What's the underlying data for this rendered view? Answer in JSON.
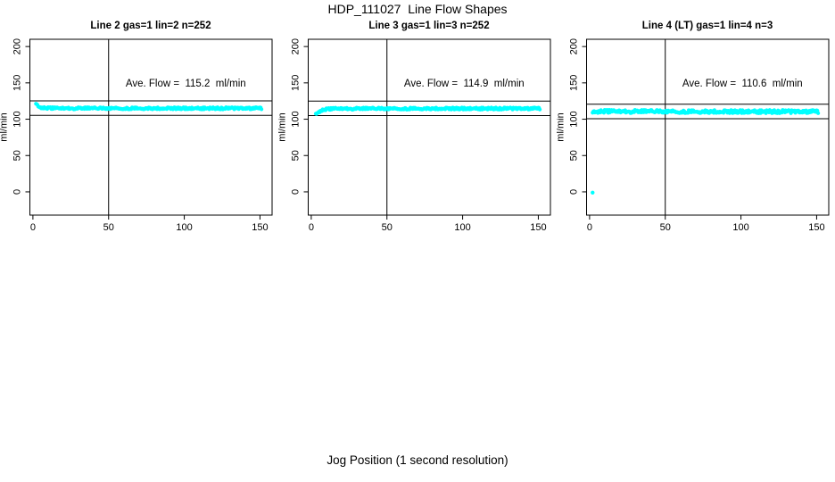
{
  "title": "HDP_111027  Line Flow Shapes",
  "bottom_axis_label": "Jog Position (1 second resolution)",
  "colors": {
    "points": "#00ffff",
    "axis": "#000000",
    "background": "#ffffff"
  },
  "chart_data": [
    {
      "type": "scatter",
      "title": "Line 2 gas=1 lin=2 n=252",
      "annotation": "Ave. Flow =  115.2  ml/min",
      "annotation_pos": [
        101,
        150
      ],
      "ave_flow": 115.2,
      "ylabel": "ml/min",
      "x_ticks": [
        0,
        50,
        100,
        150
      ],
      "y_ticks": [
        0,
        50,
        100,
        150,
        200
      ],
      "xlim": [
        -2,
        158
      ],
      "ylim": [
        -32,
        210
      ],
      "vline_x": 50,
      "hlines": [
        105.2,
        125.2
      ],
      "series": {
        "name": "flow-samples",
        "description": "dense band of 1-second flow samples, starts ~122 then settles ~115",
        "n": 252,
        "profile": [
          [
            2,
            122.5
          ],
          [
            3,
            119.5
          ],
          [
            4,
            117.3
          ],
          [
            6,
            115.8
          ],
          [
            10,
            115.2
          ],
          [
            20,
            115.0
          ],
          [
            80,
            115.0
          ],
          [
            151,
            115.0
          ]
        ],
        "noise": 1.4,
        "x_step": 0.5
      },
      "outliers": []
    },
    {
      "type": "scatter",
      "title": "Line 3 gas=1 lin=3 n=252",
      "annotation": "Ave. Flow =  114.9  ml/min",
      "annotation_pos": [
        101,
        150
      ],
      "ave_flow": 114.9,
      "ylabel": "ml/min",
      "x_ticks": [
        0,
        50,
        100,
        150
      ],
      "y_ticks": [
        0,
        50,
        100,
        150,
        200
      ],
      "xlim": [
        -2,
        158
      ],
      "ylim": [
        -32,
        210
      ],
      "vline_x": 50,
      "hlines": [
        104.9,
        124.9
      ],
      "series": {
        "name": "flow-samples",
        "description": "dense band, starts ~107 rises to steady ~114.7",
        "n": 252,
        "profile": [
          [
            3,
            107.4
          ],
          [
            4,
            108.9
          ],
          [
            5,
            110.3
          ],
          [
            7,
            112.2
          ],
          [
            10,
            113.7
          ],
          [
            16,
            114.5
          ],
          [
            80,
            114.7
          ],
          [
            151,
            114.7
          ]
        ],
        "noise": 1.4,
        "x_step": 0.5
      },
      "outliers": []
    },
    {
      "type": "scatter",
      "title": "Line 4 (LT) gas=1 lin=4 n=3",
      "annotation": "Ave. Flow =  110.6  ml/min",
      "annotation_pos": [
        101,
        150
      ],
      "ave_flow": 110.6,
      "ylabel": "ml/min",
      "x_ticks": [
        0,
        50,
        100,
        150
      ],
      "y_ticks": [
        0,
        50,
        100,
        150,
        200
      ],
      "xlim": [
        -2,
        158
      ],
      "ylim": [
        -32,
        210
      ],
      "vline_x": 50,
      "hlines": [
        100.6,
        120.6
      ],
      "series": {
        "name": "flow-samples",
        "description": "noisier flat band ~110.5, one dropout sample near 0",
        "n": 3,
        "profile": [
          [
            2,
            110.9
          ],
          [
            5,
            110.7
          ],
          [
            50,
            110.6
          ],
          [
            100,
            110.5
          ],
          [
            151,
            110.4
          ]
        ],
        "noise": 2.2,
        "x_step": 0.5
      },
      "outliers": [
        [
          2,
          -1
        ]
      ]
    }
  ]
}
